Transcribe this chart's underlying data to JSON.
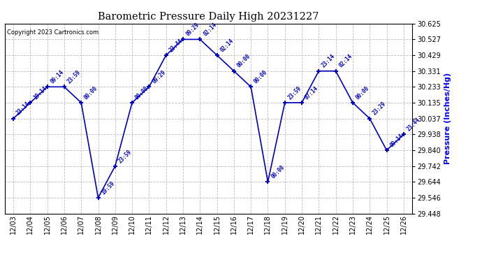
{
  "title": "Barometric Pressure Daily High 20231227",
  "ylabel": "Pressure (Inches/Hg)",
  "copyright": "Copyright 2023 Cartronics.com",
  "ylim": [
    29.448,
    30.625
  ],
  "yticks": [
    29.448,
    29.546,
    29.644,
    29.742,
    29.84,
    29.938,
    30.037,
    30.135,
    30.233,
    30.331,
    30.429,
    30.527,
    30.625
  ],
  "dates": [
    "12/03",
    "12/04",
    "12/05",
    "12/06",
    "12/07",
    "12/08",
    "12/09",
    "12/10",
    "12/11",
    "12/12",
    "12/13",
    "12/14",
    "12/15",
    "12/16",
    "12/17",
    "12/18",
    "12/19",
    "12/20",
    "12/21",
    "12/22",
    "12/23",
    "12/24",
    "12/25",
    "12/26"
  ],
  "x_indices": [
    0,
    1,
    2,
    3,
    4,
    5,
    6,
    7,
    8,
    9,
    10,
    11,
    12,
    13,
    14,
    15,
    16,
    17,
    18,
    19,
    20,
    21,
    22,
    23
  ],
  "values": [
    30.037,
    30.135,
    30.233,
    30.233,
    30.135,
    29.546,
    29.742,
    30.135,
    30.233,
    30.429,
    30.527,
    30.527,
    30.429,
    30.331,
    30.233,
    29.644,
    30.135,
    30.135,
    30.331,
    30.331,
    30.135,
    30.037,
    29.84,
    29.938
  ],
  "time_labels": [
    "23:14",
    "19:14",
    "09:14",
    "23:59",
    "00:00",
    "19:59",
    "23:59",
    "00:00",
    "09:29",
    "23:44",
    "09:29",
    "02:14",
    "02:14",
    "00:00",
    "00:00",
    "00:00",
    "23:59",
    "07:14",
    "23:14",
    "02:14",
    "00:00",
    "23:29",
    "09:14",
    "23:44"
  ],
  "line_color": "#0000bb",
  "marker_color": "#0000bb",
  "grid_color": "#bbbbbb",
  "bg_color": "#ffffff",
  "title_color": "#000000",
  "ylabel_color": "#0000ff",
  "copyright_color": "#000000"
}
